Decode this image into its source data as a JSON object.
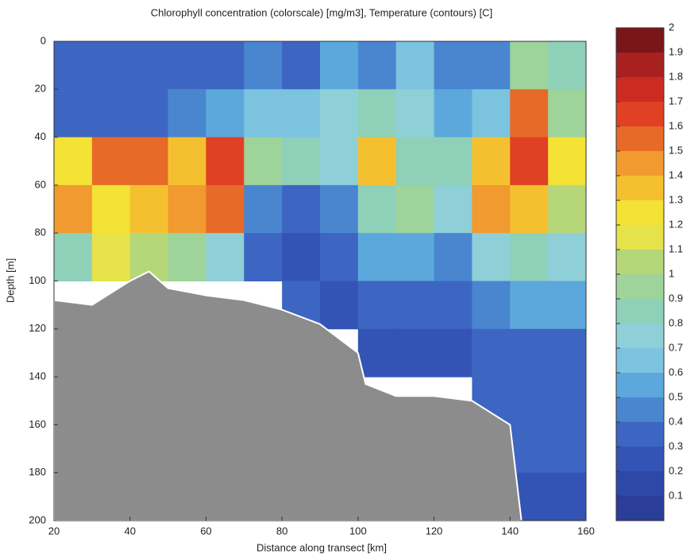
{
  "chart_data": {
    "type": "heatmap",
    "title": "Chlorophyll concentration (colorscale) [mg/m3], Temperature (contours) [C]",
    "x_label": "Distance along transect [km]",
    "y_label": "Depth [m]",
    "xlim": [
      20,
      160
    ],
    "ylim": [
      200,
      0
    ],
    "xticks": [
      20,
      40,
      60,
      80,
      100,
      120,
      140,
      160
    ],
    "yticks": [
      0,
      20,
      40,
      60,
      80,
      100,
      120,
      140,
      160,
      180,
      200
    ],
    "x": [
      25,
      35,
      45,
      55,
      65,
      75,
      85,
      95,
      105,
      115,
      125,
      135,
      145,
      155
    ],
    "depths": [
      10,
      30,
      50,
      70,
      90,
      110,
      130,
      150,
      170,
      190
    ],
    "values": [
      [
        0.3,
        0.3,
        0.3,
        0.3,
        0.3,
        0.4,
        0.3,
        0.5,
        0.4,
        0.6,
        0.4,
        0.4,
        0.9,
        0.8
      ],
      [
        0.3,
        0.3,
        0.3,
        0.4,
        0.5,
        0.6,
        0.6,
        0.7,
        0.8,
        0.7,
        0.5,
        0.6,
        1.5,
        0.9
      ],
      [
        1.2,
        1.5,
        1.5,
        1.3,
        1.6,
        0.9,
        0.8,
        0.7,
        1.3,
        0.8,
        0.8,
        1.3,
        1.6,
        1.2
      ],
      [
        1.4,
        1.2,
        1.3,
        1.4,
        1.5,
        0.4,
        0.3,
        0.4,
        0.8,
        0.9,
        0.7,
        1.4,
        1.3,
        1.0
      ],
      [
        0.8,
        1.1,
        1.0,
        0.9,
        0.7,
        0.3,
        0.2,
        0.3,
        0.5,
        0.5,
        0.4,
        0.7,
        0.8,
        0.7
      ],
      [
        null,
        null,
        null,
        null,
        null,
        null,
        0.3,
        0.2,
        0.3,
        0.3,
        0.3,
        0.4,
        0.5,
        0.5
      ],
      [
        null,
        null,
        null,
        null,
        null,
        null,
        null,
        null,
        0.2,
        0.2,
        0.2,
        0.3,
        0.3,
        0.3
      ],
      [
        null,
        null,
        null,
        null,
        null,
        null,
        null,
        null,
        null,
        null,
        null,
        0.3,
        0.3,
        0.3
      ],
      [
        null,
        null,
        null,
        null,
        null,
        null,
        null,
        null,
        null,
        null,
        null,
        null,
        0.3,
        0.3
      ],
      [
        null,
        null,
        null,
        null,
        null,
        null,
        null,
        null,
        null,
        null,
        null,
        null,
        0.2,
        0.2
      ]
    ],
    "bathymetry": {
      "color": "#8c8c8c",
      "x": [
        20,
        30,
        40,
        45,
        50,
        60,
        70,
        80,
        90,
        100,
        102,
        110,
        120,
        130,
        140,
        143
      ],
      "depth": [
        108,
        110,
        100,
        96,
        103,
        106,
        108,
        112,
        118,
        130,
        143,
        148,
        148,
        150,
        160,
        200
      ]
    },
    "colorbar": {
      "lim": [
        0,
        2
      ],
      "ticks": [
        0.1,
        0.2,
        0.3,
        0.4,
        0.5,
        0.6,
        0.7,
        0.8,
        0.9,
        1,
        1.1,
        1.2,
        1.3,
        1.4,
        1.5,
        1.6,
        1.7,
        1.8,
        1.9,
        2
      ],
      "colors": [
        "#2a3d99",
        "#2e48a8",
        "#3454b5",
        "#3d66c2",
        "#4a86d0",
        "#5ca8dc",
        "#7cc3e0",
        "#8fcfd8",
        "#8fd0b8",
        "#9ed39a",
        "#b5d77a",
        "#e5e24a",
        "#f4e234",
        "#f5c030",
        "#f09a30",
        "#e86a28",
        "#e04023",
        "#cc2b22",
        "#a8201f",
        "#7a1518"
      ]
    }
  }
}
